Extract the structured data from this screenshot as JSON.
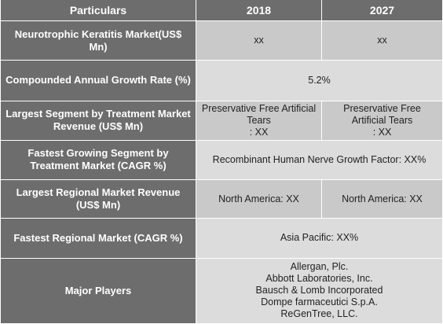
{
  "table": {
    "headers": [
      "Particulars",
      "2018",
      "2027"
    ],
    "rows": [
      {
        "label": "Neurotrophic Keratitis Market(US$ Mn)",
        "v2018": "xx",
        "v2027": "xx"
      },
      {
        "label": "Compounded Annual Growth Rate (%)",
        "merged": "5.2%"
      },
      {
        "label": "Largest Segment by Treatment Market Revenue (US$ Mn)",
        "v2018": "Preservative Free Artificial Tears\n: XX",
        "v2027": "Preservative Free Artificial Tears\n: XX"
      },
      {
        "label": "Fastest Growing Segment by Treatment Market (CAGR %)",
        "merged": "Recombinant Human Nerve Growth Factor:  XX%"
      },
      {
        "label": "Largest Regional Market Revenue (US$ Mn)",
        "v2018": "North America: XX",
        "v2027": "North America: XX"
      },
      {
        "label": "Fastest Regional Market (CAGR %)",
        "merged": "Asia Pacific: XX%"
      },
      {
        "label": "Major Players",
        "merged": "Allergan, Plc.\nAbbott Laboratories, Inc.\nBausch & Lomb Incorporated\nDompe farmaceutici S.p.A.\nReGenTree, LLC."
      }
    ]
  },
  "colors": {
    "header_bg": "#6d6d6d",
    "row_dark": "#c9c9c9",
    "row_light": "#dcdcdc"
  }
}
